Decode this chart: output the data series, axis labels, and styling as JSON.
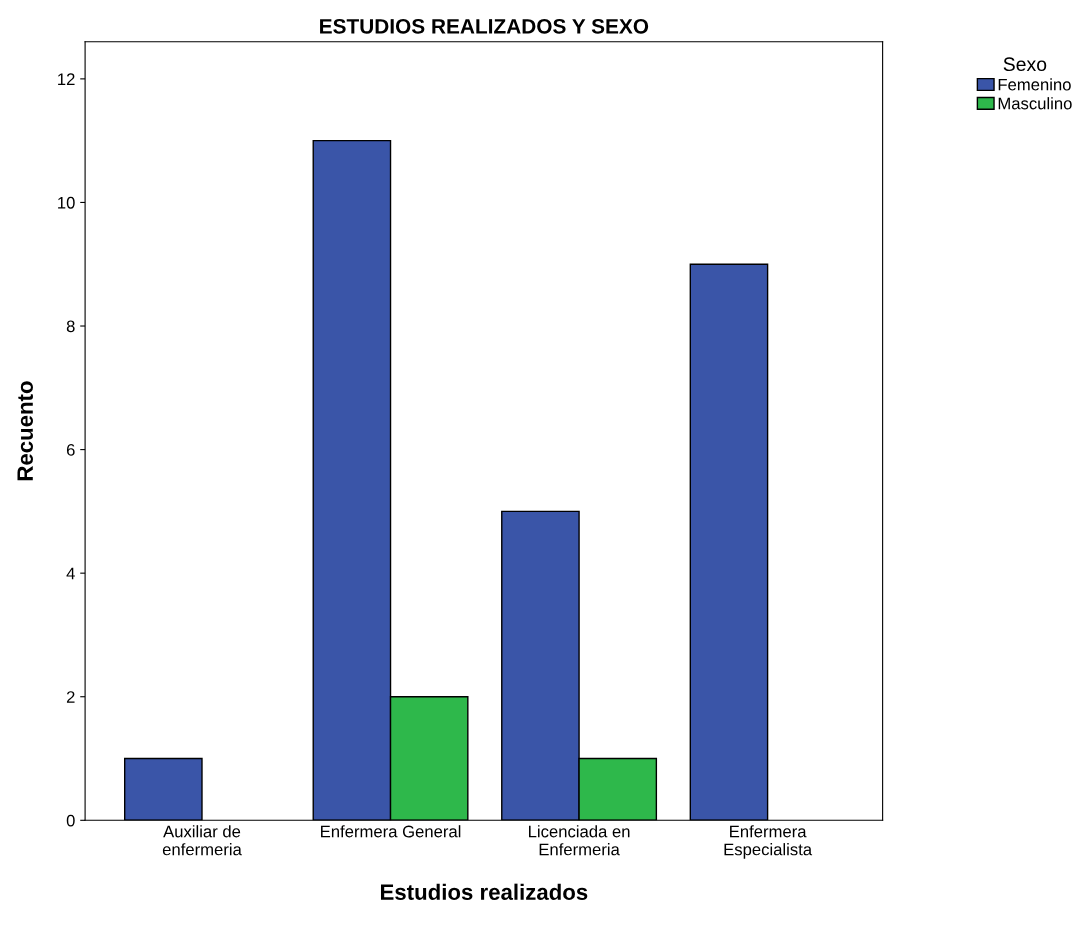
{
  "chart_data": {
    "type": "bar",
    "title": "ESTUDIOS REALIZADOS Y SEXO",
    "xlabel": "Estudios realizados",
    "ylabel": "Recuento",
    "legend_title": "Sexo",
    "categories": [
      "Auxiliar de\nenfermeria",
      "Enfermera General",
      "Licenciada en\nEnfermeria",
      "Enfermera\nEspecialista"
    ],
    "series": [
      {
        "name": "Femenino",
        "color": "#3a55a8",
        "values": [
          1,
          11,
          5,
          9
        ]
      },
      {
        "name": "Masculino",
        "color": "#2eb84b",
        "values": [
          0,
          2,
          1,
          0
        ]
      }
    ],
    "ylim": [
      0,
      12.6
    ],
    "yticks": [
      0,
      2,
      4,
      6,
      8,
      10,
      12
    ],
    "grid": false,
    "legend": "top right"
  }
}
